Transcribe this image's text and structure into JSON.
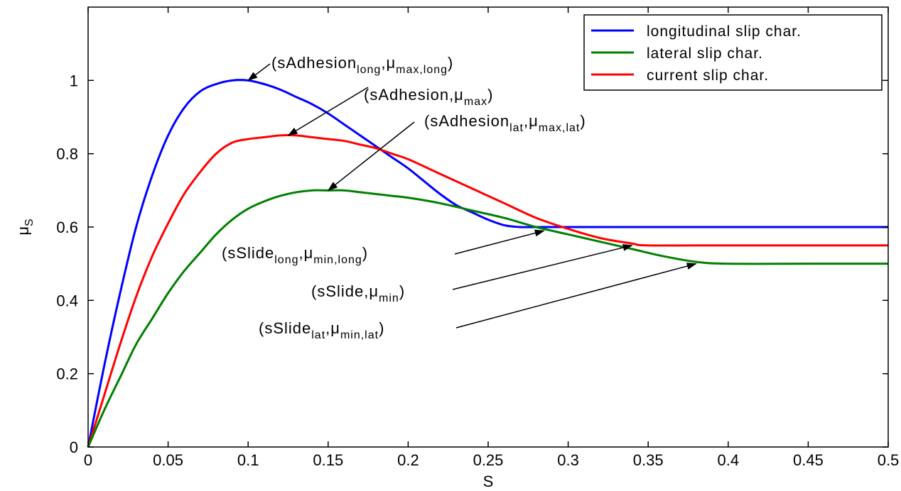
{
  "chart_data": {
    "type": "line",
    "xlabel": "S",
    "ylabel": "μS",
    "xlim": [
      0,
      0.5
    ],
    "ylim": [
      0,
      1.2
    ],
    "grid": false,
    "legend_placement": "top-right",
    "x_ticks": [
      "0",
      "0.05",
      "0.1",
      "0.15",
      "0.2",
      "0.25",
      "0.3",
      "0.35",
      "0.4",
      "0.45",
      "0.5"
    ],
    "y_ticks": [
      "0",
      "0.2",
      "0.4",
      "0.6",
      "0.8",
      "1"
    ],
    "series": [
      {
        "name": "longitudinal slip char.",
        "color": "#0000ff",
        "x": [
          0,
          0.01,
          0.02,
          0.03,
          0.04,
          0.05,
          0.06,
          0.07,
          0.08,
          0.09,
          0.1,
          0.11,
          0.12,
          0.13,
          0.14,
          0.15,
          0.16,
          0.17,
          0.18,
          0.19,
          0.2,
          0.21,
          0.22,
          0.23,
          0.24,
          0.25,
          0.26,
          0.27,
          0.28,
          0.29,
          0.3,
          0.35,
          0.4,
          0.45,
          0.5
        ],
        "y": [
          0,
          0.22,
          0.42,
          0.6,
          0.74,
          0.85,
          0.925,
          0.97,
          0.99,
          1.0,
          1.0,
          0.99,
          0.975,
          0.955,
          0.935,
          0.91,
          0.88,
          0.85,
          0.82,
          0.79,
          0.76,
          0.725,
          0.69,
          0.66,
          0.64,
          0.62,
          0.605,
          0.6,
          0.6,
          0.6,
          0.6,
          0.6,
          0.6,
          0.6,
          0.6
        ]
      },
      {
        "name": "lateral slip char.",
        "color": "#008000",
        "x": [
          0,
          0.01,
          0.02,
          0.03,
          0.04,
          0.05,
          0.06,
          0.07,
          0.08,
          0.09,
          0.1,
          0.11,
          0.12,
          0.13,
          0.14,
          0.15,
          0.16,
          0.17,
          0.18,
          0.19,
          0.2,
          0.22,
          0.24,
          0.26,
          0.28,
          0.3,
          0.32,
          0.34,
          0.36,
          0.38,
          0.4,
          0.45,
          0.5
        ],
        "y": [
          0,
          0.1,
          0.19,
          0.28,
          0.35,
          0.42,
          0.48,
          0.53,
          0.58,
          0.62,
          0.65,
          0.67,
          0.685,
          0.695,
          0.7,
          0.7,
          0.7,
          0.695,
          0.69,
          0.685,
          0.68,
          0.665,
          0.645,
          0.625,
          0.6,
          0.58,
          0.56,
          0.54,
          0.52,
          0.505,
          0.5,
          0.5,
          0.5
        ]
      },
      {
        "name": "current slip char.",
        "color": "#ff0000",
        "x": [
          0,
          0.01,
          0.02,
          0.03,
          0.04,
          0.05,
          0.06,
          0.07,
          0.08,
          0.09,
          0.1,
          0.11,
          0.12,
          0.13,
          0.14,
          0.15,
          0.16,
          0.17,
          0.18,
          0.19,
          0.2,
          0.22,
          0.24,
          0.26,
          0.28,
          0.3,
          0.32,
          0.34,
          0.35,
          0.4,
          0.45,
          0.5
        ],
        "y": [
          0,
          0.14,
          0.28,
          0.41,
          0.52,
          0.61,
          0.69,
          0.75,
          0.8,
          0.83,
          0.84,
          0.845,
          0.85,
          0.85,
          0.845,
          0.84,
          0.835,
          0.825,
          0.815,
          0.8,
          0.785,
          0.745,
          0.705,
          0.665,
          0.625,
          0.595,
          0.57,
          0.555,
          0.55,
          0.55,
          0.55,
          0.55
        ]
      }
    ],
    "annotations": [
      {
        "main": "(sAdhesion",
        "sub1": "long",
        "mid": ",μ",
        "sub2": "max,long",
        "end": ")",
        "arrow_to": [
          0.1,
          1.0
        ]
      },
      {
        "main": "(sAdhesion,μ",
        "sub1": "",
        "mid": "",
        "sub2": "max",
        "end": ")",
        "arrow_to": [
          0.125,
          0.85
        ]
      },
      {
        "main": "(sAdhesion",
        "sub1": "lat",
        "mid": ",μ",
        "sub2": "max,lat",
        "end": ")",
        "arrow_to": [
          0.15,
          0.7
        ]
      },
      {
        "main": "(sSlide",
        "sub1": "long",
        "mid": ",μ",
        "sub2": "min,long",
        "end": ")",
        "arrow_to": [
          0.285,
          0.59
        ]
      },
      {
        "main": "(sSlide,μ",
        "sub1": "",
        "mid": "",
        "sub2": "min",
        "end": ")",
        "arrow_to": [
          0.34,
          0.55
        ]
      },
      {
        "main": "(sSlide",
        "sub1": "lat",
        "mid": ",μ",
        "sub2": "min,lat",
        "end": ")",
        "arrow_to": [
          0.38,
          0.5
        ]
      }
    ]
  }
}
